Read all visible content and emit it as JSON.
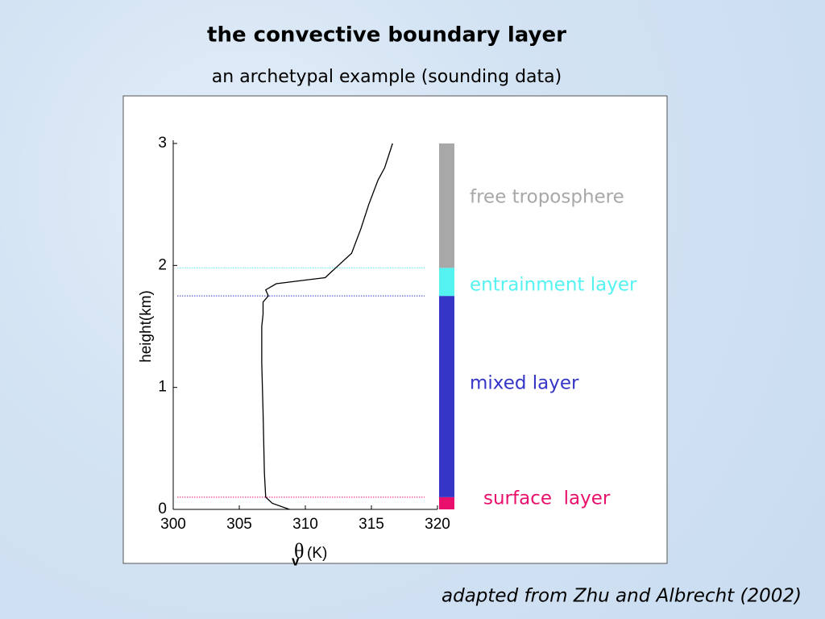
{
  "slide": {
    "title": "the convective boundary layer",
    "subtitle": "an archetypal example (sounding data)",
    "credit": "adapted from Zhu and Albrecht (2002)"
  },
  "chart_data": {
    "type": "line",
    "ylabel": "height(km)",
    "xlabel_symbol": "θ",
    "xlabel_subscript": "v",
    "xlabel_unit": "(K)",
    "xlim": [
      300,
      320
    ],
    "xticks": [
      300,
      305,
      310,
      315,
      320
    ],
    "ylim": [
      0,
      3
    ],
    "yticks": [
      0,
      1,
      2,
      3
    ],
    "series": [
      {
        "color": "#000000",
        "x": [
          308.8,
          307.5,
          307.0,
          306.9,
          306.8,
          306.7,
          306.7,
          306.8,
          306.8,
          307.2,
          307.0,
          307.8,
          310.0,
          311.5,
          312.0,
          312.5,
          313.5,
          314.2,
          314.8,
          315.5,
          316.0,
          316.3,
          316.6
        ],
        "values": [
          0,
          0.05,
          0.1,
          0.3,
          0.8,
          1.2,
          1.5,
          1.6,
          1.7,
          1.75,
          1.8,
          1.85,
          1.88,
          1.9,
          1.95,
          2.0,
          2.1,
          2.3,
          2.5,
          2.7,
          2.8,
          2.9,
          3.0
        ]
      }
    ],
    "layers": [
      {
        "name": "surface  layer",
        "color": "#e8106c",
        "range": [
          0,
          0.1
        ]
      },
      {
        "name": "mixed layer",
        "color": "#3535c8",
        "range": [
          0.1,
          1.75
        ]
      },
      {
        "name": "entrainment layer",
        "color": "#55f2f2",
        "range": [
          1.75,
          1.98
        ]
      },
      {
        "name": "free troposphere",
        "color": "#a8a8a8",
        "range": [
          1.98,
          3
        ]
      }
    ]
  }
}
